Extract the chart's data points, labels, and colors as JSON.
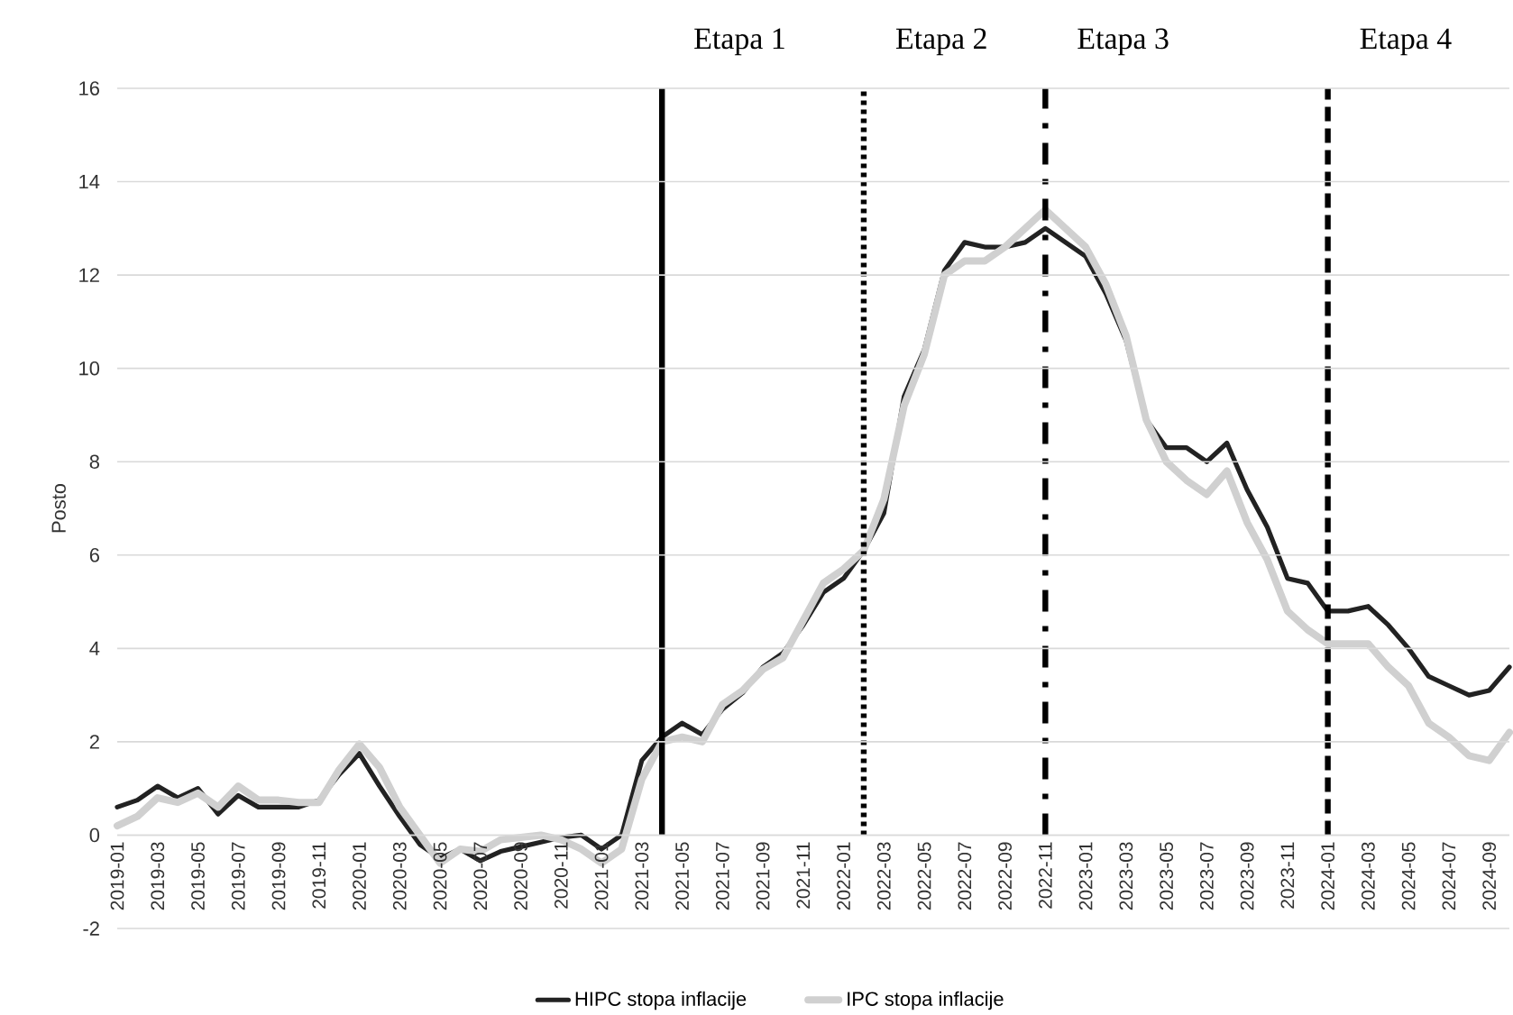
{
  "chart_data": {
    "type": "line",
    "ylabel": "Posto",
    "x": [
      "2019-01",
      "2019-02",
      "2019-03",
      "2019-04",
      "2019-05",
      "2019-06",
      "2019-07",
      "2019-08",
      "2019-09",
      "2019-10",
      "2019-11",
      "2019-12",
      "2020-01",
      "2020-02",
      "2020-03",
      "2020-04",
      "2020-05",
      "2020-06",
      "2020-07",
      "2020-08",
      "2020-09",
      "2020-10",
      "2020-11",
      "2020-12",
      "2021-01",
      "2021-02",
      "2021-03",
      "2021-04",
      "2021-05",
      "2021-06",
      "2021-07",
      "2021-08",
      "2021-09",
      "2021-10",
      "2021-11",
      "2021-12",
      "2022-01",
      "2022-02",
      "2022-03",
      "2022-04",
      "2022-05",
      "2022-06",
      "2022-07",
      "2022-08",
      "2022-09",
      "2022-10",
      "2022-11",
      "2022-12",
      "2023-01",
      "2023-02",
      "2023-03",
      "2023-04",
      "2023-05",
      "2023-06",
      "2023-07",
      "2023-08",
      "2023-09",
      "2023-10",
      "2023-11",
      "2023-12",
      "2024-01",
      "2024-02",
      "2024-03",
      "2024-04",
      "2024-05",
      "2024-06",
      "2024-07",
      "2024-08",
      "2024-09",
      "2024-10"
    ],
    "series": [
      {
        "name": "HIPC stopa inflacije",
        "color": "#222222",
        "values": [
          0.6,
          0.75,
          1.05,
          0.8,
          1.0,
          0.45,
          0.85,
          0.6,
          0.6,
          0.6,
          0.75,
          1.3,
          1.75,
          1.05,
          0.4,
          -0.2,
          -0.5,
          -0.3,
          -0.55,
          -0.35,
          -0.25,
          -0.15,
          -0.05,
          0.0,
          -0.3,
          0.0,
          1.6,
          2.1,
          2.4,
          2.15,
          2.7,
          3.05,
          3.6,
          3.9,
          4.5,
          5.2,
          5.5,
          6.1,
          6.9,
          9.4,
          10.4,
          12.1,
          12.7,
          12.6,
          12.6,
          12.7,
          13.0,
          12.7,
          12.4,
          11.6,
          10.6,
          8.9,
          8.3,
          8.3,
          8.0,
          8.4,
          7.4,
          6.6,
          5.5,
          5.4,
          4.8,
          4.8,
          4.9,
          4.5,
          4.0,
          3.4,
          3.2,
          3.0,
          3.1,
          3.6
        ]
      },
      {
        "name": "IPC stopa inflacije",
        "color": "#d0d0d0",
        "values": [
          0.2,
          0.4,
          0.8,
          0.7,
          0.9,
          0.6,
          1.05,
          0.75,
          0.75,
          0.7,
          0.7,
          1.4,
          1.95,
          1.45,
          0.6,
          0.0,
          -0.6,
          -0.3,
          -0.35,
          -0.1,
          -0.05,
          0.0,
          -0.1,
          -0.3,
          -0.6,
          -0.3,
          1.2,
          2.0,
          2.1,
          2.0,
          2.8,
          3.1,
          3.55,
          3.8,
          4.6,
          5.4,
          5.7,
          6.1,
          7.2,
          9.2,
          10.3,
          12.0,
          12.3,
          12.3,
          12.6,
          13.0,
          13.4,
          13.0,
          12.6,
          11.8,
          10.7,
          8.9,
          8.0,
          7.6,
          7.3,
          7.8,
          6.7,
          5.9,
          4.8,
          4.4,
          4.1,
          4.1,
          4.1,
          3.6,
          3.2,
          2.4,
          2.1,
          1.7,
          1.6,
          2.2
        ]
      }
    ],
    "xlim": [
      "2019-01",
      "2024-10"
    ],
    "xticks": [
      "2019-01",
      "2019-03",
      "2019-05",
      "2019-07",
      "2019-09",
      "2019-11",
      "2020-01",
      "2020-03",
      "2020-05",
      "2020-07",
      "2020-09",
      "2020-11",
      "2021-01",
      "2021-03",
      "2021-05",
      "2021-07",
      "2021-09",
      "2021-11",
      "2022-01",
      "2022-03",
      "2022-05",
      "2022-07",
      "2022-09",
      "2022-11",
      "2023-01",
      "2023-03",
      "2023-05",
      "2023-07",
      "2023-09",
      "2023-11",
      "2024-01",
      "2024-03",
      "2024-05",
      "2024-07",
      "2024-09"
    ],
    "ylim": [
      -2,
      16
    ],
    "yticks": [
      -2,
      0,
      2,
      4,
      6,
      8,
      10,
      12,
      14,
      16
    ],
    "grid": "y",
    "legend": "bottom",
    "ref_lines": [
      {
        "axis": "x",
        "value": "2021-04",
        "label": "Etapa 1",
        "color": "#000000",
        "line_style": "solid"
      },
      {
        "axis": "x",
        "value": "2022-02",
        "label": "Etapa 2",
        "color": "#000000",
        "line_style": "dotted"
      },
      {
        "axis": "x",
        "value": "2022-11",
        "label": "Etapa 3",
        "color": "#000000",
        "line_style": "dashdot"
      },
      {
        "axis": "x",
        "value": "2024-01",
        "label": "Etapa 4",
        "color": "#000000",
        "line_style": "dashed"
      }
    ]
  }
}
